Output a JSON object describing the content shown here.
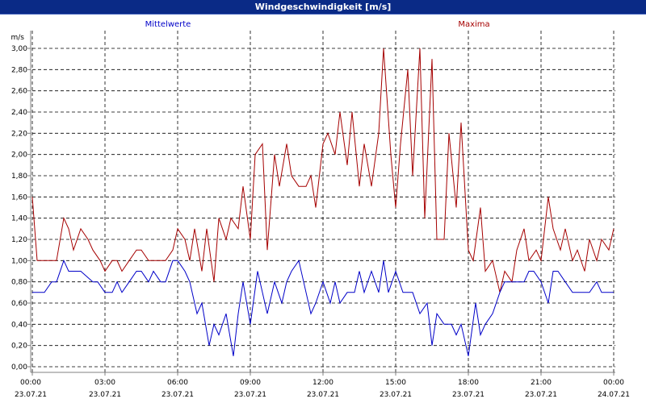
{
  "window": {
    "title": "Windgeschwindigkeit [m/s]"
  },
  "colors": {
    "title_bar": "#0a2a86",
    "mean": "#0000c8",
    "max": "#a50000",
    "grid": "#000000",
    "axis": "#808080"
  },
  "chart_data": {
    "type": "line",
    "title": "Windgeschwindigkeit [m/s]",
    "ylabel": "m/s",
    "xlabel": "",
    "ylim": [
      0,
      3.0
    ],
    "xlim": [
      0,
      24
    ],
    "grid": true,
    "y_ticks": [
      "0,00",
      "0,20",
      "0,40",
      "0,60",
      "0,80",
      "1,00",
      "1,20",
      "1,40",
      "1,60",
      "1,80",
      "2,00",
      "2,20",
      "2,40",
      "2,60",
      "2,80",
      "3,00"
    ],
    "x_ticks": [
      {
        "time": "00:00",
        "date": "23.07.21"
      },
      {
        "time": "03:00",
        "date": "23.07.21"
      },
      {
        "time": "06:00",
        "date": "23.07.21"
      },
      {
        "time": "09:00",
        "date": "23.07.21"
      },
      {
        "time": "12:00",
        "date": "23.07.21"
      },
      {
        "time": "15:00",
        "date": "23.07.21"
      },
      {
        "time": "18:00",
        "date": "23.07.21"
      },
      {
        "time": "21:00",
        "date": "23.07.21"
      },
      {
        "time": "00:00",
        "date": "24.07.21"
      }
    ],
    "series": [
      {
        "name": "Mittelwerte",
        "color": "#0000c8",
        "x": [
          0,
          0.5,
          0.8,
          1.0,
          1.3,
          1.5,
          2.0,
          2.5,
          2.7,
          3.0,
          3.3,
          3.5,
          3.7,
          4.0,
          4.3,
          4.5,
          4.8,
          5.0,
          5.3,
          5.5,
          5.8,
          6.0,
          6.3,
          6.5,
          6.8,
          7.0,
          7.3,
          7.5,
          7.7,
          8.0,
          8.3,
          8.5,
          8.7,
          9.0,
          9.3,
          9.5,
          9.7,
          10.0,
          10.3,
          10.5,
          10.7,
          11.0,
          11.3,
          11.5,
          11.7,
          12.0,
          12.3,
          12.5,
          12.7,
          13.0,
          13.3,
          13.5,
          13.7,
          14.0,
          14.3,
          14.5,
          14.7,
          15.0,
          15.3,
          15.5,
          15.7,
          16.0,
          16.3,
          16.5,
          16.7,
          17.0,
          17.3,
          17.5,
          17.7,
          18.0,
          18.3,
          18.5,
          18.7,
          19.0,
          19.3,
          19.5,
          19.7,
          20.0,
          20.3,
          20.5,
          20.7,
          21.0,
          21.3,
          21.5,
          21.7,
          22.0,
          22.3,
          22.5,
          22.7,
          23.0,
          23.3,
          23.5,
          23.7,
          24.0
        ],
        "values": [
          0.7,
          0.7,
          0.8,
          0.8,
          1.0,
          0.9,
          0.9,
          0.8,
          0.8,
          0.7,
          0.7,
          0.8,
          0.7,
          0.8,
          0.9,
          0.9,
          0.8,
          0.9,
          0.8,
          0.8,
          1.0,
          1.0,
          0.9,
          0.8,
          0.5,
          0.6,
          0.2,
          0.4,
          0.3,
          0.5,
          0.1,
          0.5,
          0.8,
          0.4,
          0.9,
          0.7,
          0.5,
          0.8,
          0.6,
          0.8,
          0.9,
          1.0,
          0.7,
          0.5,
          0.6,
          0.8,
          0.6,
          0.8,
          0.6,
          0.7,
          0.7,
          0.9,
          0.7,
          0.9,
          0.7,
          1.0,
          0.7,
          0.9,
          0.7,
          0.7,
          0.7,
          0.5,
          0.6,
          0.2,
          0.5,
          0.4,
          0.4,
          0.3,
          0.4,
          0.1,
          0.6,
          0.3,
          0.4,
          0.5,
          0.7,
          0.8,
          0.8,
          0.8,
          0.8,
          0.9,
          0.9,
          0.8,
          0.6,
          0.9,
          0.9,
          0.8,
          0.7,
          0.7,
          0.7,
          0.7,
          0.8,
          0.7,
          0.7,
          0.7
        ]
      },
      {
        "name": "Maxima",
        "color": "#a50000",
        "x": [
          0,
          0.2,
          0.5,
          1.0,
          1.3,
          1.5,
          1.7,
          2.0,
          2.3,
          2.5,
          2.8,
          3.0,
          3.3,
          3.5,
          3.7,
          4.0,
          4.3,
          4.5,
          4.8,
          5.0,
          5.3,
          5.5,
          5.8,
          6.0,
          6.3,
          6.5,
          6.7,
          7.0,
          7.2,
          7.5,
          7.7,
          8.0,
          8.2,
          8.5,
          8.7,
          9.0,
          9.2,
          9.5,
          9.7,
          10.0,
          10.2,
          10.5,
          10.7,
          11.0,
          11.3,
          11.5,
          11.7,
          12.0,
          12.2,
          12.5,
          12.7,
          13.0,
          13.2,
          13.5,
          13.7,
          14.0,
          14.3,
          14.5,
          14.8,
          15.0,
          15.2,
          15.5,
          15.7,
          16.0,
          16.2,
          16.5,
          16.7,
          17.0,
          17.2,
          17.5,
          17.7,
          18.0,
          18.2,
          18.5,
          18.7,
          19.0,
          19.3,
          19.5,
          19.8,
          20.0,
          20.3,
          20.5,
          20.8,
          21.0,
          21.3,
          21.5,
          21.8,
          22.0,
          22.3,
          22.5,
          22.8,
          23.0,
          23.3,
          23.5,
          23.8,
          24.0
        ],
        "values": [
          1.6,
          1.0,
          1.0,
          1.0,
          1.4,
          1.3,
          1.1,
          1.3,
          1.2,
          1.1,
          1.0,
          0.9,
          1.0,
          1.0,
          0.9,
          1.0,
          1.1,
          1.1,
          1.0,
          1.0,
          1.0,
          1.0,
          1.1,
          1.3,
          1.2,
          1.0,
          1.3,
          0.9,
          1.3,
          0.8,
          1.4,
          1.2,
          1.4,
          1.3,
          1.7,
          1.2,
          2.0,
          2.1,
          1.1,
          2.0,
          1.7,
          2.1,
          1.8,
          1.7,
          1.7,
          1.8,
          1.5,
          2.1,
          2.2,
          2.0,
          2.4,
          1.9,
          2.4,
          1.7,
          2.1,
          1.7,
          2.2,
          3.0,
          2.0,
          1.5,
          2.1,
          2.8,
          1.8,
          3.0,
          1.4,
          2.9,
          1.2,
          1.2,
          2.2,
          1.5,
          2.3,
          1.1,
          1.0,
          1.5,
          0.9,
          1.0,
          0.7,
          0.9,
          0.8,
          1.1,
          1.3,
          1.0,
          1.1,
          1.0,
          1.6,
          1.3,
          1.1,
          1.3,
          1.0,
          1.1,
          0.9,
          1.2,
          1.0,
          1.2,
          1.1,
          1.3
        ]
      }
    ]
  }
}
